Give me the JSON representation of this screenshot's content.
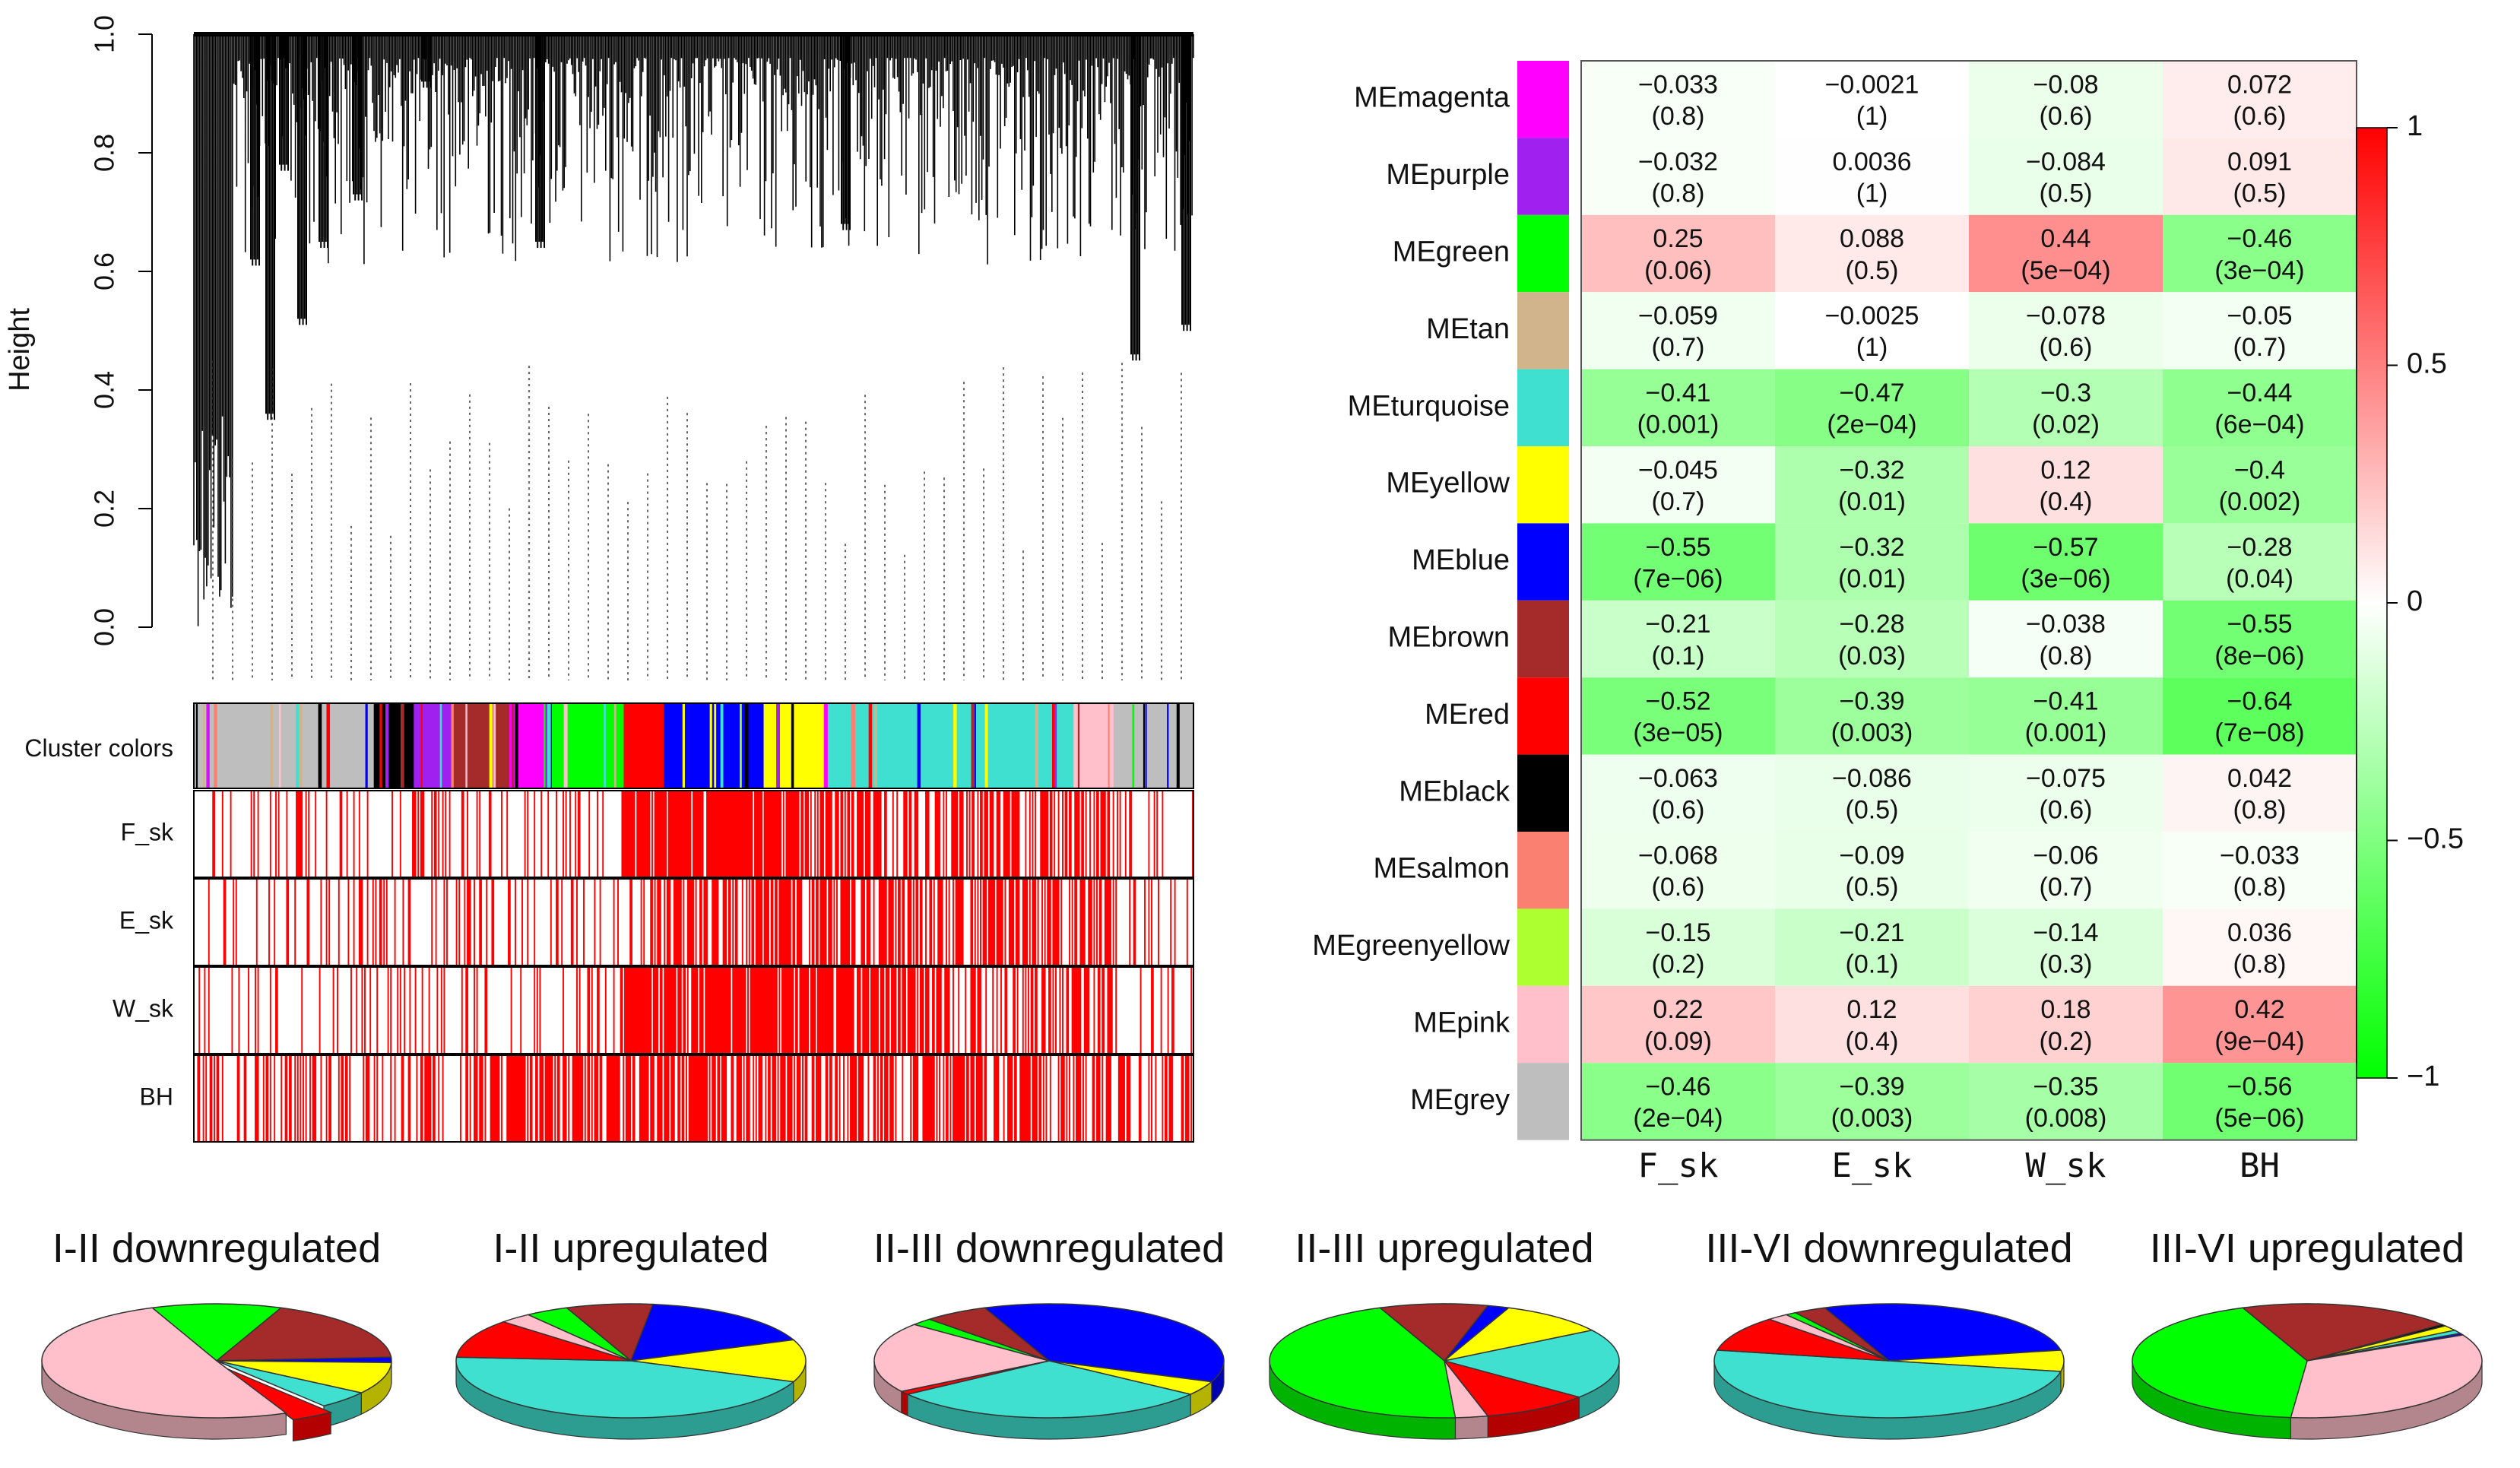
{
  "chart_data": [
    {
      "type": "dendrogram",
      "panel": "gene-clustering",
      "ylabel": "Height",
      "ylim": [
        0.0,
        1.0
      ],
      "yticks": [
        "0.0",
        "0.2",
        "0.4",
        "0.6",
        "0.8",
        "1.0"
      ],
      "colorbar_label": "Cluster colors",
      "color_segments": [
        {
          "color": "#bebebe",
          "frac": 0.18
        },
        {
          "color": "#000000",
          "frac": 0.04
        },
        {
          "color": "#a020f0",
          "frac": 0.04
        },
        {
          "color": "#a52a2a",
          "frac": 0.06
        },
        {
          "color": "#ff00ff",
          "frac": 0.03
        },
        {
          "color": "#00ff00",
          "frac": 0.08
        },
        {
          "color": "#ff0000",
          "frac": 0.04
        },
        {
          "color": "#0000ff",
          "frac": 0.1
        },
        {
          "color": "#ffff00",
          "frac": 0.06
        },
        {
          "color": "#40e0d0",
          "frac": 0.25
        },
        {
          "color": "#ffc0cb",
          "frac": 0.04
        },
        {
          "color": "#bebebe",
          "frac": 0.08
        }
      ],
      "trait_rows": [
        "F_sk",
        "E_sk",
        "W_sk",
        "BH"
      ]
    },
    {
      "type": "heatmap",
      "panel": "module-trait",
      "columns": [
        "F_sk",
        "E_sk",
        "W_sk",
        "BH"
      ],
      "rows": [
        {
          "label": "MEmagenta",
          "color": "#ff00ff",
          "r": [
            -0.033,
            -0.0021,
            -0.08,
            0.072
          ],
          "r_text": [
            "−0.033",
            "−0.0021",
            "−0.08",
            "0.072"
          ],
          "p": [
            "(0.8)",
            "(1)",
            "(0.6)",
            "(0.6)"
          ]
        },
        {
          "label": "MEpurple",
          "color": "#a020f0",
          "r": [
            -0.032,
            0.0036,
            -0.084,
            0.091
          ],
          "r_text": [
            "−0.032",
            "0.0036",
            "−0.084",
            "0.091"
          ],
          "p": [
            "(0.8)",
            "(1)",
            "(0.5)",
            "(0.5)"
          ]
        },
        {
          "label": "MEgreen",
          "color": "#00ff00",
          "r": [
            0.25,
            0.088,
            0.44,
            -0.46
          ],
          "r_text": [
            "0.25",
            "0.088",
            "0.44",
            "−0.46"
          ],
          "p": [
            "(0.06)",
            "(0.5)",
            "(5e−04)",
            "(3e−04)"
          ]
        },
        {
          "label": "MEtan",
          "color": "#d2b48c",
          "r": [
            -0.059,
            -0.0025,
            -0.078,
            -0.05
          ],
          "r_text": [
            "−0.059",
            "−0.0025",
            "−0.078",
            "−0.05"
          ],
          "p": [
            "(0.7)",
            "(1)",
            "(0.6)",
            "(0.7)"
          ]
        },
        {
          "label": "MEturquoise",
          "color": "#40e0d0",
          "r": [
            -0.41,
            -0.47,
            -0.3,
            -0.44
          ],
          "r_text": [
            "−0.41",
            "−0.47",
            "−0.3",
            "−0.44"
          ],
          "p": [
            "(0.001)",
            "(2e−04)",
            "(0.02)",
            "(6e−04)"
          ]
        },
        {
          "label": "MEyellow",
          "color": "#ffff00",
          "r": [
            -0.045,
            -0.32,
            0.12,
            -0.4
          ],
          "r_text": [
            "−0.045",
            "−0.32",
            "0.12",
            "−0.4"
          ],
          "p": [
            "(0.7)",
            "(0.01)",
            "(0.4)",
            "(0.002)"
          ]
        },
        {
          "label": "MEblue",
          "color": "#0000ff",
          "r": [
            -0.55,
            -0.32,
            -0.57,
            -0.28
          ],
          "r_text": [
            "−0.55",
            "−0.32",
            "−0.57",
            "−0.28"
          ],
          "p": [
            "(7e−06)",
            "(0.01)",
            "(3e−06)",
            "(0.04)"
          ]
        },
        {
          "label": "MEbrown",
          "color": "#a52a2a",
          "r": [
            -0.21,
            -0.28,
            -0.038,
            -0.55
          ],
          "r_text": [
            "−0.21",
            "−0.28",
            "−0.038",
            "−0.55"
          ],
          "p": [
            "(0.1)",
            "(0.03)",
            "(0.8)",
            "(8e−06)"
          ]
        },
        {
          "label": "MEred",
          "color": "#ff0000",
          "r": [
            -0.52,
            -0.39,
            -0.41,
            -0.64
          ],
          "r_text": [
            "−0.52",
            "−0.39",
            "−0.41",
            "−0.64"
          ],
          "p": [
            "(3e−05)",
            "(0.003)",
            "(0.001)",
            "(7e−08)"
          ]
        },
        {
          "label": "MEblack",
          "color": "#000000",
          "r": [
            -0.063,
            -0.086,
            -0.075,
            0.042
          ],
          "r_text": [
            "−0.063",
            "−0.086",
            "−0.075",
            "0.042"
          ],
          "p": [
            "(0.6)",
            "(0.5)",
            "(0.6)",
            "(0.8)"
          ]
        },
        {
          "label": "MEsalmon",
          "color": "#fa8072",
          "r": [
            -0.068,
            -0.09,
            -0.06,
            -0.033
          ],
          "r_text": [
            "−0.068",
            "−0.09",
            "−0.06",
            "−0.033"
          ],
          "p": [
            "(0.6)",
            "(0.5)",
            "(0.7)",
            "(0.8)"
          ]
        },
        {
          "label": "MEgreenyellow",
          "color": "#adff2f",
          "r": [
            -0.15,
            -0.21,
            -0.14,
            0.036
          ],
          "r_text": [
            "−0.15",
            "−0.21",
            "−0.14",
            "0.036"
          ],
          "p": [
            "(0.2)",
            "(0.1)",
            "(0.3)",
            "(0.8)"
          ]
        },
        {
          "label": "MEpink",
          "color": "#ffc0cb",
          "r": [
            0.22,
            0.12,
            0.18,
            0.42
          ],
          "r_text": [
            "0.22",
            "0.12",
            "0.18",
            "0.42"
          ],
          "p": [
            "(0.09)",
            "(0.4)",
            "(0.2)",
            "(9e−04)"
          ]
        },
        {
          "label": "MEgrey",
          "color": "#bebebe",
          "r": [
            -0.46,
            -0.39,
            -0.35,
            -0.56
          ],
          "r_text": [
            "−0.46",
            "−0.39",
            "−0.35",
            "−0.56"
          ],
          "p": [
            "(2e−04)",
            "(0.003)",
            "(0.008)",
            "(5e−06)"
          ]
        }
      ],
      "color_scale": {
        "min": -1,
        "max": 1,
        "low": "#00ff00",
        "mid": "#ffffff",
        "high": "#ff0000",
        "tick_labels": [
          "1",
          "0.5",
          "0",
          "−0.5",
          "−1"
        ],
        "tick_values": [
          1,
          0.5,
          0,
          -0.5,
          -1
        ]
      }
    },
    {
      "type": "pie",
      "title": "I-II downregulated",
      "slices": [
        {
          "module": "green",
          "color": "#00ff00",
          "value": 0.12
        },
        {
          "module": "brown",
          "color": "#a52a2a",
          "value": 0.18
        },
        {
          "module": "blue",
          "color": "#0000ff",
          "value": 0.015
        },
        {
          "module": "yellow",
          "color": "#ffff00",
          "value": 0.09
        },
        {
          "module": "turquoise",
          "color": "#40e0d0",
          "value": 0.05
        },
        {
          "module": "red",
          "color": "#ff0000",
          "value": 0.04,
          "exploded": true
        },
        {
          "module": "pink",
          "color": "#ffc0cb",
          "value": 0.505
        }
      ]
    },
    {
      "type": "pie",
      "title": "I-II upregulated",
      "slices": [
        {
          "module": "brown",
          "color": "#a52a2a",
          "value": 0.08
        },
        {
          "module": "blue",
          "color": "#0000ff",
          "value": 0.17
        },
        {
          "module": "yellow",
          "color": "#ffff00",
          "value": 0.12
        },
        {
          "module": "turquoise",
          "color": "#40e0d0",
          "value": 0.45
        },
        {
          "module": "red",
          "color": "#ff0000",
          "value": 0.11
        },
        {
          "module": "pink",
          "color": "#ffc0cb",
          "value": 0.03
        },
        {
          "module": "green",
          "color": "#00ff00",
          "value": 0.04
        }
      ]
    },
    {
      "type": "pie",
      "title": "II-III downregulated",
      "slices": [
        {
          "module": "blue",
          "color": "#0000ff",
          "value": 0.37
        },
        {
          "module": "yellow",
          "color": "#ffff00",
          "value": 0.04
        },
        {
          "module": "turquoise",
          "color": "#40e0d0",
          "value": 0.3
        },
        {
          "module": "red",
          "color": "#ff0000",
          "value": 0.01
        },
        {
          "module": "pink",
          "color": "#ffc0cb",
          "value": 0.2
        },
        {
          "module": "green",
          "color": "#00ff00",
          "value": 0.02
        },
        {
          "module": "brown",
          "color": "#a52a2a",
          "value": 0.06
        }
      ]
    },
    {
      "type": "pie",
      "title": "II-III upregulated",
      "slices": [
        {
          "module": "brown",
          "color": "#a52a2a",
          "value": 0.1
        },
        {
          "module": "blue",
          "color": "#0000ff",
          "value": 0.02
        },
        {
          "module": "yellow",
          "color": "#ffff00",
          "value": 0.1
        },
        {
          "module": "turquoise",
          "color": "#40e0d0",
          "value": 0.2
        },
        {
          "module": "red",
          "color": "#ff0000",
          "value": 0.1
        },
        {
          "module": "pink",
          "color": "#ffc0cb",
          "value": 0.03
        },
        {
          "module": "green",
          "color": "#00ff00",
          "value": 0.45
        }
      ]
    },
    {
      "type": "pie",
      "title": "III-VI downregulated",
      "slices": [
        {
          "module": "blue",
          "color": "#0000ff",
          "value": 0.28
        },
        {
          "module": "yellow",
          "color": "#ffff00",
          "value": 0.06
        },
        {
          "module": "turquoise",
          "color": "#40e0d0",
          "value": 0.5
        },
        {
          "module": "red",
          "color": "#ff0000",
          "value": 0.1
        },
        {
          "module": "pink",
          "color": "#ffc0cb",
          "value": 0.02
        },
        {
          "module": "green",
          "color": "#00ff00",
          "value": 0.01
        },
        {
          "module": "brown",
          "color": "#a52a2a",
          "value": 0.03
        }
      ]
    },
    {
      "type": "pie",
      "title": "III-VI upregulated",
      "slices": [
        {
          "module": "brown",
          "color": "#a52a2a",
          "value": 0.2
        },
        {
          "module": "black",
          "color": "#000000",
          "value": 0.005
        },
        {
          "module": "yellow",
          "color": "#ffff00",
          "value": 0.015
        },
        {
          "module": "turquoise",
          "color": "#40e0d0",
          "value": 0.01
        },
        {
          "module": "blue",
          "color": "#0000ff",
          "value": 0.005
        },
        {
          "module": "pink",
          "color": "#ffc0cb",
          "value": 0.34
        },
        {
          "module": "green",
          "color": "#00ff00",
          "value": 0.425
        }
      ]
    }
  ]
}
